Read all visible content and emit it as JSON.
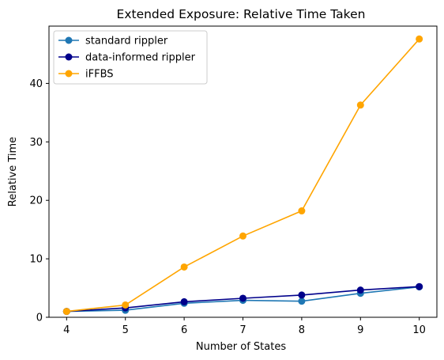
{
  "chart_data": {
    "type": "line",
    "title": "Extended Exposure: Relative Time Taken",
    "xlabel": "Number of States",
    "ylabel": "Relative Time",
    "x": [
      4,
      5,
      6,
      7,
      8,
      9,
      10
    ],
    "xlim": [
      3.7,
      10.3
    ],
    "ylim": [
      0,
      49.8
    ],
    "xticks": [
      4,
      5,
      6,
      7,
      8,
      9,
      10
    ],
    "yticks": [
      0,
      10,
      20,
      30,
      40
    ],
    "grid": false,
    "legend_position": "upper-left",
    "series": [
      {
        "name": "standard rippler",
        "color": "#1f77b4",
        "values": [
          1.0,
          1.2,
          2.4,
          2.9,
          2.75,
          4.1,
          5.2
        ]
      },
      {
        "name": "data-informed rippler",
        "color": "#00008b",
        "values": [
          1.0,
          1.6,
          2.65,
          3.25,
          3.8,
          4.65,
          5.25
        ]
      },
      {
        "name": "iFFBS",
        "color": "#ffa500",
        "values": [
          1.0,
          2.1,
          8.6,
          13.9,
          18.2,
          36.3,
          47.6
        ]
      }
    ]
  }
}
